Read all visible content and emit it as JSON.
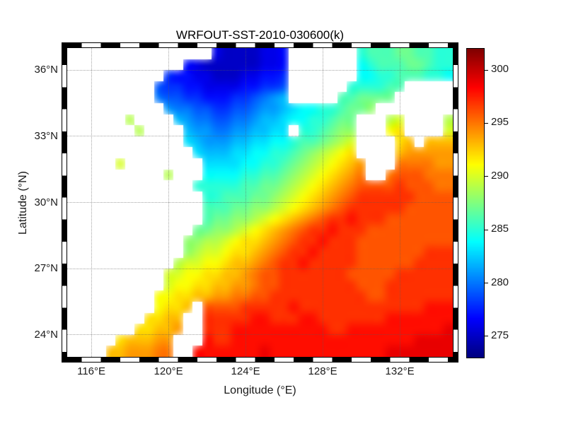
{
  "chart_data": {
    "type": "heatmap",
    "title": "WRFOUT-SST-2010-030600(k)",
    "xlabel": "Longitude (°E)",
    "ylabel": "Latitude (°N)",
    "units": "K",
    "colormap": "jet",
    "clim": [
      273,
      302
    ],
    "lon_range": [
      114.75,
      134.75
    ],
    "lat_range": [
      23,
      37
    ],
    "grid_info": {
      "lon_start": 115.0,
      "lon_step": 0.5,
      "lat_start": 36.75,
      "lat_step": -0.5,
      "cols": 40,
      "rows": 28,
      "land_value": null
    },
    "land_color": "#ffffff",
    "grid_line_color": "#5a5a5a",
    "x_ticks": [
      {
        "value": 116,
        "label": "116°E"
      },
      {
        "value": 120,
        "label": "120°E"
      },
      {
        "value": 124,
        "label": "124°E"
      },
      {
        "value": 128,
        "label": "128°E"
      },
      {
        "value": 132,
        "label": "132°E"
      }
    ],
    "y_ticks": [
      {
        "value": 36,
        "label": "36°N"
      },
      {
        "value": 33,
        "label": "33°N"
      },
      {
        "value": 30,
        "label": "30°N"
      },
      {
        "value": 27,
        "label": "27°N"
      },
      {
        "value": 24,
        "label": "24°N"
      }
    ],
    "colorbar_ticks": [
      {
        "value": 275,
        "label": "275"
      },
      {
        "value": 280,
        "label": "280"
      },
      {
        "value": 285,
        "label": "285"
      },
      {
        "value": 290,
        "label": "290"
      },
      {
        "value": 295,
        "label": "295"
      },
      {
        "value": 300,
        "label": "300"
      }
    ],
    "sst_grid": [
      [
        null,
        null,
        null,
        null,
        null,
        null,
        null,
        null,
        null,
        null,
        null,
        null,
        null,
        null,
        null,
        276,
        275,
        275,
        275,
        275,
        276,
        276,
        277,
        null,
        null,
        null,
        null,
        null,
        null,
        null,
        285,
        286,
        286,
        286,
        287,
        287,
        286,
        286,
        285,
        285
      ],
      [
        null,
        null,
        null,
        null,
        null,
        null,
        null,
        null,
        null,
        null,
        null,
        null,
        277,
        276,
        275,
        275,
        275,
        275,
        275,
        275,
        276,
        276,
        277,
        null,
        null,
        null,
        null,
        null,
        null,
        null,
        284,
        285,
        286,
        286,
        286,
        287,
        287,
        286,
        285,
        285
      ],
      [
        null,
        null,
        null,
        null,
        null,
        null,
        null,
        null,
        null,
        null,
        278,
        277,
        277,
        276,
        276,
        275,
        275,
        275,
        276,
        276,
        277,
        277,
        278,
        null,
        null,
        null,
        null,
        null,
        null,
        null,
        284,
        284,
        285,
        285,
        286,
        286,
        286,
        285,
        285,
        284
      ],
      [
        null,
        null,
        null,
        null,
        null,
        null,
        null,
        null,
        null,
        279,
        278,
        278,
        277,
        277,
        276,
        276,
        276,
        276,
        277,
        277,
        278,
        278,
        279,
        null,
        null,
        null,
        null,
        null,
        null,
        285,
        285,
        285,
        285,
        286,
        286,
        null,
        null,
        null,
        null,
        null
      ],
      [
        null,
        null,
        null,
        null,
        null,
        null,
        null,
        null,
        null,
        280,
        279,
        279,
        278,
        278,
        277,
        277,
        277,
        278,
        278,
        279,
        280,
        281,
        282,
        null,
        null,
        null,
        null,
        null,
        286,
        286,
        287,
        287,
        287,
        287,
        null,
        null,
        null,
        null,
        null,
        null
      ],
      [
        null,
        null,
        null,
        null,
        null,
        null,
        null,
        null,
        null,
        null,
        281,
        280,
        280,
        279,
        279,
        278,
        278,
        279,
        279,
        280,
        281,
        281,
        282,
        283,
        284,
        284,
        285,
        285,
        286,
        287,
        287,
        288,
        null,
        null,
        null,
        null,
        null,
        null,
        null,
        null
      ],
      [
        null,
        null,
        null,
        null,
        null,
        null,
        289,
        null,
        null,
        null,
        null,
        282,
        281,
        280,
        280,
        279,
        279,
        280,
        280,
        281,
        282,
        282,
        283,
        284,
        284,
        285,
        285,
        286,
        287,
        287,
        null,
        null,
        null,
        289,
        290,
        null,
        null,
        null,
        null,
        289
      ],
      [
        null,
        null,
        null,
        null,
        null,
        null,
        null,
        289,
        null,
        null,
        null,
        null,
        282,
        281,
        281,
        280,
        280,
        281,
        281,
        282,
        282,
        283,
        283,
        null,
        285,
        285,
        286,
        287,
        288,
        288,
        null,
        null,
        null,
        291,
        292,
        null,
        null,
        null,
        null,
        290
      ],
      [
        null,
        null,
        null,
        null,
        null,
        null,
        null,
        null,
        null,
        null,
        null,
        null,
        283,
        282,
        281,
        281,
        281,
        282,
        282,
        283,
        283,
        284,
        284,
        285,
        286,
        286,
        287,
        288,
        289,
        290,
        null,
        null,
        null,
        null,
        292,
        293,
        null,
        293,
        293,
        293
      ],
      [
        null,
        null,
        null,
        null,
        null,
        null,
        null,
        null,
        null,
        null,
        null,
        null,
        null,
        283,
        282,
        282,
        282,
        283,
        283,
        284,
        284,
        285,
        285,
        286,
        287,
        288,
        289,
        290,
        291,
        292,
        null,
        null,
        null,
        null,
        293,
        294,
        294,
        294,
        294,
        294
      ],
      [
        null,
        null,
        null,
        null,
        null,
        290,
        null,
        null,
        null,
        null,
        null,
        null,
        null,
        null,
        283,
        283,
        283,
        283,
        284,
        284,
        285,
        285,
        286,
        287,
        288,
        289,
        290,
        291,
        292,
        293,
        294,
        null,
        null,
        null,
        295,
        295,
        295,
        295,
        294,
        294
      ],
      [
        null,
        null,
        null,
        null,
        null,
        null,
        null,
        null,
        null,
        null,
        289,
        null,
        null,
        null,
        284,
        284,
        284,
        284,
        285,
        285,
        286,
        286,
        287,
        288,
        289,
        290,
        291,
        292,
        293,
        294,
        295,
        null,
        null,
        295,
        296,
        296,
        296,
        295,
        295,
        295
      ],
      [
        null,
        null,
        null,
        null,
        null,
        null,
        null,
        null,
        null,
        null,
        null,
        null,
        null,
        285,
        285,
        285,
        285,
        285,
        286,
        286,
        287,
        287,
        288,
        289,
        290,
        291,
        292,
        293,
        294,
        295,
        296,
        296,
        296,
        296,
        297,
        296,
        296,
        296,
        295,
        295
      ],
      [
        null,
        null,
        null,
        null,
        null,
        null,
        null,
        null,
        null,
        null,
        null,
        null,
        null,
        null,
        285,
        285,
        286,
        286,
        286,
        287,
        287,
        288,
        289,
        290,
        291,
        292,
        293,
        294,
        295,
        296,
        297,
        297,
        297,
        297,
        297,
        297,
        296,
        296,
        296,
        296
      ],
      [
        null,
        null,
        null,
        null,
        null,
        null,
        null,
        null,
        null,
        null,
        null,
        null,
        null,
        null,
        286,
        286,
        286,
        287,
        287,
        288,
        288,
        289,
        290,
        291,
        292,
        293,
        294,
        295,
        296,
        297,
        297,
        297,
        297,
        297,
        297,
        296,
        296,
        296,
        296,
        296
      ],
      [
        null,
        null,
        null,
        null,
        null,
        null,
        null,
        null,
        null,
        null,
        null,
        null,
        null,
        null,
        286,
        287,
        287,
        288,
        288,
        289,
        290,
        291,
        292,
        293,
        294,
        295,
        296,
        297,
        297,
        298,
        297,
        297,
        297,
        296,
        296,
        296,
        296,
        296,
        296,
        296
      ],
      [
        null,
        null,
        null,
        null,
        null,
        null,
        null,
        null,
        null,
        null,
        null,
        null,
        null,
        287,
        287,
        288,
        288,
        289,
        290,
        291,
        292,
        293,
        294,
        295,
        296,
        297,
        297,
        298,
        297,
        297,
        297,
        296,
        296,
        296,
        296,
        296,
        296,
        296,
        296,
        296
      ],
      [
        null,
        null,
        null,
        null,
        null,
        null,
        null,
        null,
        null,
        null,
        null,
        null,
        288,
        288,
        289,
        289,
        290,
        291,
        292,
        292,
        293,
        294,
        295,
        296,
        297,
        297,
        298,
        297,
        297,
        297,
        296,
        296,
        296,
        296,
        296,
        296,
        296,
        296,
        296,
        296
      ],
      [
        null,
        null,
        null,
        null,
        null,
        null,
        null,
        null,
        null,
        null,
        null,
        null,
        288,
        289,
        290,
        290,
        291,
        292,
        292,
        293,
        294,
        295,
        296,
        297,
        297,
        298,
        297,
        297,
        297,
        297,
        296,
        296,
        296,
        296,
        296,
        296,
        296,
        297,
        297,
        297
      ],
      [
        null,
        null,
        null,
        null,
        null,
        null,
        null,
        null,
        null,
        null,
        null,
        289,
        290,
        290,
        291,
        291,
        292,
        293,
        293,
        294,
        295,
        296,
        297,
        297,
        298,
        297,
        297,
        297,
        297,
        297,
        296,
        296,
        296,
        296,
        296,
        296,
        297,
        297,
        297,
        297
      ],
      [
        null,
        null,
        null,
        null,
        null,
        null,
        null,
        null,
        null,
        null,
        290,
        290,
        291,
        291,
        292,
        292,
        293,
        293,
        294,
        295,
        296,
        296,
        297,
        297,
        297,
        297,
        297,
        297,
        297,
        296,
        296,
        296,
        296,
        296,
        297,
        297,
        297,
        297,
        297,
        297
      ],
      [
        null,
        null,
        null,
        null,
        null,
        null,
        null,
        null,
        null,
        null,
        290,
        291,
        291,
        292,
        292,
        293,
        293,
        294,
        294,
        295,
        296,
        296,
        297,
        297,
        297,
        297,
        297,
        297,
        297,
        297,
        296,
        296,
        296,
        297,
        297,
        297,
        297,
        297,
        297,
        297
      ],
      [
        null,
        null,
        null,
        null,
        null,
        null,
        null,
        null,
        null,
        291,
        291,
        292,
        292,
        293,
        293,
        294,
        294,
        295,
        295,
        296,
        296,
        297,
        297,
        297,
        297,
        297,
        297,
        297,
        297,
        297,
        297,
        296,
        296,
        297,
        297,
        297,
        297,
        297,
        297,
        297
      ],
      [
        null,
        null,
        null,
        null,
        null,
        null,
        null,
        null,
        null,
        291,
        292,
        292,
        293,
        null,
        296,
        296,
        296,
        296,
        297,
        297,
        297,
        297,
        297,
        298,
        297,
        297,
        297,
        297,
        297,
        297,
        297,
        297,
        297,
        297,
        297,
        297,
        297,
        298,
        298,
        298
      ],
      [
        null,
        null,
        null,
        null,
        null,
        null,
        null,
        null,
        292,
        292,
        293,
        293,
        null,
        null,
        297,
        297,
        297,
        297,
        297,
        298,
        298,
        297,
        297,
        297,
        298,
        298,
        297,
        297,
        297,
        297,
        297,
        297,
        297,
        298,
        298,
        298,
        298,
        298,
        298,
        298
      ],
      [
        null,
        null,
        null,
        null,
        null,
        null,
        null,
        292,
        292,
        293,
        293,
        294,
        null,
        null,
        297,
        297,
        297,
        298,
        298,
        298,
        298,
        298,
        298,
        298,
        298,
        298,
        298,
        297,
        297,
        298,
        298,
        298,
        298,
        298,
        298,
        298,
        298,
        298,
        298,
        299
      ],
      [
        null,
        null,
        null,
        null,
        null,
        292,
        293,
        293,
        293,
        294,
        294,
        null,
        null,
        null,
        298,
        297,
        297,
        298,
        298,
        298,
        298,
        298,
        298,
        298,
        298,
        298,
        298,
        298,
        298,
        298,
        298,
        298,
        298,
        298,
        298,
        298,
        299,
        299,
        299,
        299
      ],
      [
        null,
        null,
        null,
        null,
        293,
        293,
        294,
        294,
        294,
        295,
        295,
        null,
        null,
        298,
        298,
        298,
        298,
        298,
        298,
        298,
        299,
        298,
        298,
        298,
        298,
        298,
        298,
        298,
        298,
        298,
        298,
        298,
        298,
        299,
        299,
        299,
        299,
        299,
        299,
        299
      ]
    ]
  }
}
